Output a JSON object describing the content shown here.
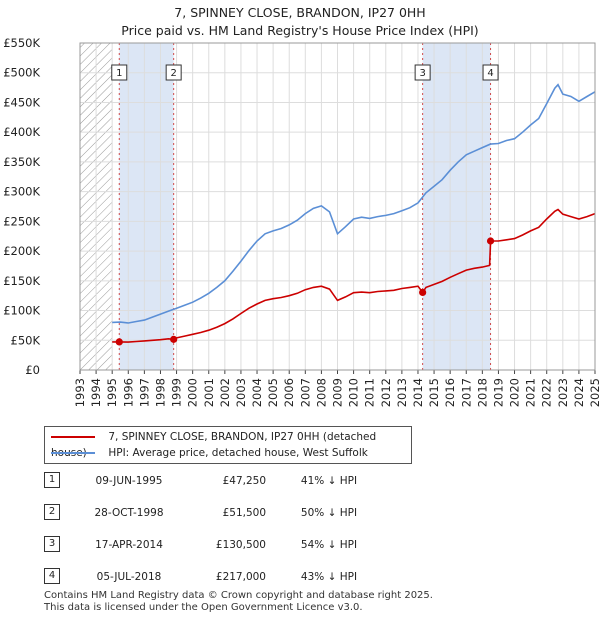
{
  "title_line1": "7, SPINNEY CLOSE, BRANDON, IP27 0HH",
  "title_line2": "Price paid vs. HM Land Registry's House Price Index (HPI)",
  "legend": {
    "property": "7, SPINNEY CLOSE, BRANDON, IP27 0HH (detached house)",
    "hpi": "HPI: Average price, detached house, West Suffolk"
  },
  "colors": {
    "property": "#cc0000",
    "hpi": "#5b8fd6",
    "shade": "#dce6f5",
    "vline": "#d04a4a"
  },
  "sales": [
    {
      "num": "1",
      "date": "09-JUN-1995",
      "price": "£47,250",
      "hpi": "41% ↓ HPI"
    },
    {
      "num": "2",
      "date": "28-OCT-1998",
      "price": "£51,500",
      "hpi": "50% ↓ HPI"
    },
    {
      "num": "3",
      "date": "17-APR-2014",
      "price": "£130,500",
      "hpi": "54% ↓ HPI"
    },
    {
      "num": "4",
      "date": "05-JUL-2018",
      "price": "£217,000",
      "hpi": "43% ↓ HPI"
    }
  ],
  "footer": {
    "line1": "Contains HM Land Registry data © Crown copyright and database right 2025.",
    "line2": "This data is licensed under the Open Government Licence v3.0."
  },
  "chart_data": {
    "type": "line",
    "xlim": [
      1993,
      2025
    ],
    "ylim": [
      0,
      550000
    ],
    "x_ticks": [
      "1993",
      "1994",
      "1995",
      "1996",
      "1997",
      "1998",
      "1999",
      "2000",
      "2001",
      "2002",
      "2003",
      "2004",
      "2005",
      "2006",
      "2007",
      "2008",
      "2009",
      "2010",
      "2011",
      "2012",
      "2013",
      "2014",
      "2015",
      "2016",
      "2017",
      "2018",
      "2019",
      "2020",
      "2021",
      "2022",
      "2023",
      "2024",
      "2025"
    ],
    "y_ticks": [
      {
        "value": 0,
        "label": "£0"
      },
      {
        "value": 50000,
        "label": "£50K"
      },
      {
        "value": 100000,
        "label": "£100K"
      },
      {
        "value": 150000,
        "label": "£150K"
      },
      {
        "value": 200000,
        "label": "£200K"
      },
      {
        "value": 250000,
        "label": "£250K"
      },
      {
        "value": 300000,
        "label": "£300K"
      },
      {
        "value": 350000,
        "label": "£350K"
      },
      {
        "value": 400000,
        "label": "£400K"
      },
      {
        "value": 450000,
        "label": "£450K"
      },
      {
        "value": 500000,
        "label": "£500K"
      },
      {
        "value": 550000,
        "label": "£550K"
      }
    ],
    "hatched_until": 1995.0,
    "shaded_ranges": [
      [
        1995.44,
        1998.82
      ],
      [
        2014.29,
        2018.51
      ]
    ],
    "series": [
      {
        "name": "HPI: Average price, detached house, West Suffolk",
        "points": [
          [
            1995.0,
            80000
          ],
          [
            1995.5,
            80500
          ],
          [
            1996.0,
            79000
          ],
          [
            1996.5,
            81500
          ],
          [
            1997.0,
            84000
          ],
          [
            1997.5,
            89000
          ],
          [
            1998.0,
            94000
          ],
          [
            1998.5,
            99000
          ],
          [
            1999.0,
            104000
          ],
          [
            1999.5,
            109000
          ],
          [
            2000.0,
            114000
          ],
          [
            2000.5,
            121000
          ],
          [
            2001.0,
            129000
          ],
          [
            2001.5,
            139000
          ],
          [
            2002.0,
            150000
          ],
          [
            2002.5,
            166000
          ],
          [
            2003.0,
            183000
          ],
          [
            2003.5,
            201000
          ],
          [
            2004.0,
            217000
          ],
          [
            2004.5,
            229000
          ],
          [
            2005.0,
            234000
          ],
          [
            2005.5,
            238000
          ],
          [
            2006.0,
            244000
          ],
          [
            2006.5,
            252000
          ],
          [
            2007.0,
            263000
          ],
          [
            2007.5,
            272000
          ],
          [
            2008.0,
            276000
          ],
          [
            2008.5,
            266000
          ],
          [
            2009.0,
            229000
          ],
          [
            2009.5,
            241000
          ],
          [
            2010.0,
            254000
          ],
          [
            2010.5,
            257000
          ],
          [
            2011.0,
            255000
          ],
          [
            2011.5,
            258000
          ],
          [
            2012.0,
            260000
          ],
          [
            2012.5,
            263000
          ],
          [
            2013.0,
            268000
          ],
          [
            2013.5,
            273000
          ],
          [
            2014.0,
            281000
          ],
          [
            2014.5,
            298000
          ],
          [
            2015.0,
            309000
          ],
          [
            2015.5,
            320000
          ],
          [
            2016.0,
            336000
          ],
          [
            2016.5,
            350000
          ],
          [
            2017.0,
            362000
          ],
          [
            2017.5,
            368000
          ],
          [
            2018.0,
            374000
          ],
          [
            2018.5,
            380000
          ],
          [
            2019.0,
            381000
          ],
          [
            2019.5,
            386000
          ],
          [
            2020.0,
            389000
          ],
          [
            2020.5,
            400000
          ],
          [
            2021.0,
            412000
          ],
          [
            2021.5,
            423000
          ],
          [
            2022.0,
            448000
          ],
          [
            2022.5,
            474000
          ],
          [
            2022.7,
            480000
          ],
          [
            2023.0,
            464000
          ],
          [
            2023.5,
            460000
          ],
          [
            2024.0,
            452000
          ],
          [
            2024.5,
            460000
          ],
          [
            2025.0,
            468000
          ]
        ]
      },
      {
        "name": "7, SPINNEY CLOSE, BRANDON, IP27 0HH (detached house)",
        "points": [
          [
            1995.0,
            47250
          ],
          [
            1995.44,
            47250
          ],
          [
            1996.0,
            47000
          ],
          [
            1996.5,
            48000
          ],
          [
            1997.0,
            49000
          ],
          [
            1997.5,
            50000
          ],
          [
            1998.0,
            51000
          ],
          [
            1998.5,
            52500
          ],
          [
            1998.82,
            51500
          ],
          [
            1999.0,
            54000
          ],
          [
            1999.5,
            57000
          ],
          [
            2000.0,
            60000
          ],
          [
            2000.5,
            63000
          ],
          [
            2001.0,
            67000
          ],
          [
            2001.5,
            72000
          ],
          [
            2002.0,
            78000
          ],
          [
            2002.5,
            86000
          ],
          [
            2003.0,
            95000
          ],
          [
            2003.5,
            104000
          ],
          [
            2004.0,
            111000
          ],
          [
            2004.5,
            117000
          ],
          [
            2005.0,
            120000
          ],
          [
            2005.5,
            122000
          ],
          [
            2006.0,
            125000
          ],
          [
            2006.5,
            129000
          ],
          [
            2007.0,
            135000
          ],
          [
            2007.5,
            139000
          ],
          [
            2008.0,
            141000
          ],
          [
            2008.5,
            136000
          ],
          [
            2009.0,
            117000
          ],
          [
            2009.5,
            123000
          ],
          [
            2010.0,
            130000
          ],
          [
            2010.5,
            131000
          ],
          [
            2011.0,
            130000
          ],
          [
            2011.5,
            132000
          ],
          [
            2012.0,
            133000
          ],
          [
            2012.5,
            134000
          ],
          [
            2013.0,
            137000
          ],
          [
            2013.5,
            139000
          ],
          [
            2014.0,
            141000
          ],
          [
            2014.29,
            130500
          ],
          [
            2014.5,
            139000
          ],
          [
            2015.0,
            144000
          ],
          [
            2015.5,
            149000
          ],
          [
            2016.0,
            156000
          ],
          [
            2016.5,
            162000
          ],
          [
            2017.0,
            168000
          ],
          [
            2017.5,
            171000
          ],
          [
            2018.0,
            173000
          ],
          [
            2018.45,
            176000
          ],
          [
            2018.51,
            217000
          ],
          [
            2019.0,
            217000
          ],
          [
            2019.5,
            219000
          ],
          [
            2020.0,
            221000
          ],
          [
            2020.5,
            227000
          ],
          [
            2021.0,
            234000
          ],
          [
            2021.5,
            240000
          ],
          [
            2022.0,
            254000
          ],
          [
            2022.5,
            267000
          ],
          [
            2022.7,
            270000
          ],
          [
            2023.0,
            262000
          ],
          [
            2023.5,
            258000
          ],
          [
            2024.0,
            254000
          ],
          [
            2024.5,
            258000
          ],
          [
            2025.0,
            263000
          ]
        ]
      }
    ],
    "sale_points": [
      {
        "label": "1",
        "x": 1995.44,
        "y": 47250
      },
      {
        "label": "2",
        "x": 1998.82,
        "y": 51500
      },
      {
        "label": "3",
        "x": 2014.29,
        "y": 130500
      },
      {
        "label": "4",
        "x": 2018.51,
        "y": 217000
      }
    ]
  }
}
